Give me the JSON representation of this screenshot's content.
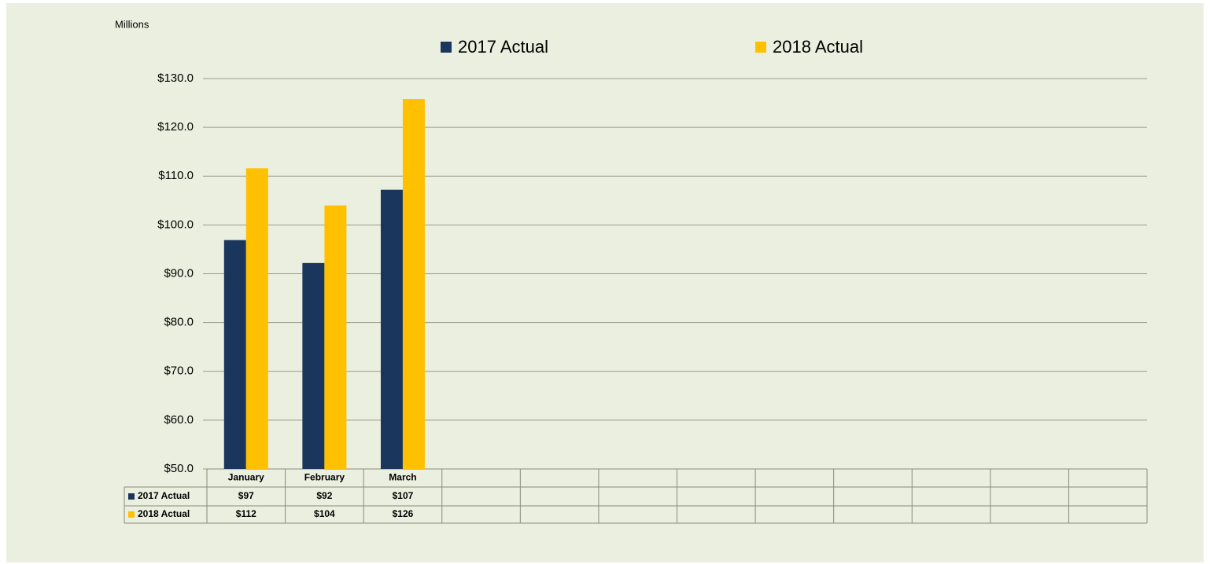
{
  "chart_data": {
    "type": "bar",
    "ylabel": "Millions",
    "categories": [
      "January",
      "February",
      "March",
      null,
      null,
      null,
      null,
      null,
      null,
      null,
      null,
      null
    ],
    "series": [
      {
        "name": "2017 Actual",
        "color": "#1b365d",
        "values": [
          96.9,
          92.2,
          107.2,
          null,
          null,
          null,
          null,
          null,
          null,
          null,
          null,
          null
        ],
        "value_labels": [
          "$97",
          "$92",
          "$107",
          null,
          null,
          null,
          null,
          null,
          null,
          null,
          null,
          null
        ]
      },
      {
        "name": "2018 Actual",
        "color": "#ffc000",
        "values": [
          111.6,
          104.0,
          125.8,
          null,
          null,
          null,
          null,
          null,
          null,
          null,
          null,
          null
        ],
        "value_labels": [
          "$112",
          "$104",
          "$126",
          null,
          null,
          null,
          null,
          null,
          null,
          null,
          null,
          null
        ]
      }
    ],
    "ylim": [
      50,
      130
    ],
    "yticks": [
      {
        "value": 50,
        "label": "$50.0"
      },
      {
        "value": 60,
        "label": "$60.0"
      },
      {
        "value": 70,
        "label": "$70.0"
      },
      {
        "value": 80,
        "label": "$80.0"
      },
      {
        "value": 90,
        "label": "$90.0"
      },
      {
        "value": 100,
        "label": "$100.0"
      },
      {
        "value": 110,
        "label": "$110.0"
      },
      {
        "value": 120,
        "label": "$120.0"
      },
      {
        "value": 130,
        "label": "$130.0"
      }
    ],
    "grid": true,
    "legend": "top"
  }
}
